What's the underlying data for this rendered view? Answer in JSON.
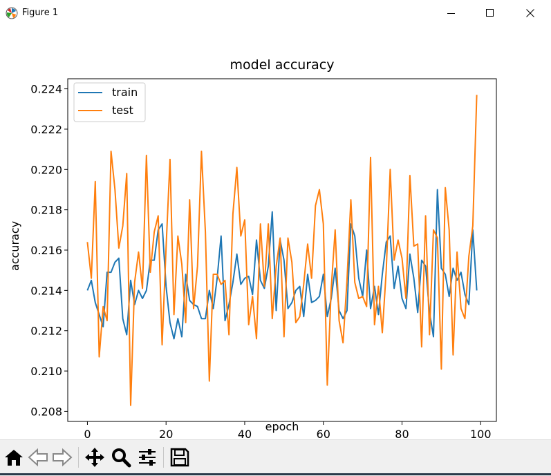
{
  "window": {
    "title": "Figure 1"
  },
  "chart_data": {
    "type": "line",
    "title": "model accuracy",
    "xlabel": "epoch",
    "ylabel": "accuracy",
    "xlim": [
      -5,
      104
    ],
    "ylim": [
      0.2075,
      0.2245
    ],
    "xticks": [
      0,
      20,
      40,
      60,
      80,
      100
    ],
    "xtick_labels": [
      "0",
      "20",
      "40",
      "60",
      "80",
      "100"
    ],
    "yticks": [
      0.208,
      0.21,
      0.212,
      0.214,
      0.216,
      0.218,
      0.22,
      0.222,
      0.224
    ],
    "ytick_labels": [
      "0.208",
      "0.210",
      "0.212",
      "0.214",
      "0.216",
      "0.218",
      "0.220",
      "0.222",
      "0.224"
    ],
    "grid": false,
    "legend": "upper-left",
    "series": [
      {
        "name": "train",
        "color": "#1f77b4",
        "x": [
          0,
          1,
          2,
          3,
          4,
          5,
          6,
          7,
          8,
          9,
          10,
          11,
          12,
          13,
          14,
          15,
          16,
          17,
          18,
          19,
          20,
          21,
          22,
          23,
          24,
          25,
          26,
          27,
          28,
          29,
          30,
          31,
          32,
          33,
          34,
          35,
          36,
          37,
          38,
          39,
          40,
          41,
          42,
          43,
          44,
          45,
          46,
          47,
          48,
          49,
          50,
          51,
          52,
          53,
          54,
          55,
          56,
          57,
          58,
          59,
          60,
          61,
          62,
          63,
          64,
          65,
          66,
          67,
          68,
          69,
          70,
          71,
          72,
          73,
          74,
          75,
          76,
          77,
          78,
          79,
          80,
          81,
          82,
          83,
          84,
          85,
          86,
          87,
          88,
          89,
          90,
          91,
          92,
          93,
          94,
          95,
          96,
          97,
          98,
          99
        ],
        "values": [
          0.214,
          0.2145,
          0.2134,
          0.2128,
          0.2122,
          0.2149,
          0.2149,
          0.2154,
          0.2156,
          0.2126,
          0.2118,
          0.2145,
          0.2133,
          0.214,
          0.2136,
          0.214,
          0.2155,
          0.2155,
          0.217,
          0.2173,
          0.2142,
          0.2124,
          0.2116,
          0.2126,
          0.2117,
          0.2148,
          0.2135,
          0.2133,
          0.2132,
          0.2126,
          0.2126,
          0.214,
          0.2131,
          0.2146,
          0.2167,
          0.2125,
          0.2133,
          0.2144,
          0.2158,
          0.2143,
          0.2146,
          0.2147,
          0.2138,
          0.2165,
          0.2145,
          0.2141,
          0.2152,
          0.2179,
          0.213,
          0.2165,
          0.2155,
          0.2131,
          0.2134,
          0.214,
          0.2142,
          0.2127,
          0.2148,
          0.2134,
          0.2135,
          0.2137,
          0.2148,
          0.2127,
          0.2136,
          0.2151,
          0.213,
          0.2126,
          0.213,
          0.2173,
          0.2167,
          0.2146,
          0.2137,
          0.216,
          0.2131,
          0.2142,
          0.2128,
          0.2148,
          0.2164,
          0.2167,
          0.2141,
          0.2152,
          0.2136,
          0.2131,
          0.2158,
          0.2146,
          0.2129,
          0.2155,
          0.2152,
          0.2129,
          0.2117,
          0.219,
          0.2151,
          0.2148,
          0.2137,
          0.2151,
          0.2145,
          0.2149,
          0.2138,
          0.2133,
          0.217,
          0.214
        ]
      },
      {
        "name": "test",
        "color": "#ff7f0e",
        "x": [
          0,
          1,
          2,
          3,
          4,
          5,
          6,
          7,
          8,
          9,
          10,
          11,
          12,
          13,
          14,
          15,
          16,
          17,
          18,
          19,
          20,
          21,
          22,
          23,
          24,
          25,
          26,
          27,
          28,
          29,
          30,
          31,
          32,
          33,
          34,
          35,
          36,
          37,
          38,
          39,
          40,
          41,
          42,
          43,
          44,
          45,
          46,
          47,
          48,
          49,
          50,
          51,
          52,
          53,
          54,
          55,
          56,
          57,
          58,
          59,
          60,
          61,
          62,
          63,
          64,
          65,
          66,
          67,
          68,
          69,
          70,
          71,
          72,
          73,
          74,
          75,
          76,
          77,
          78,
          79,
          80,
          81,
          82,
          83,
          84,
          85,
          86,
          87,
          88,
          89,
          90,
          91,
          92,
          93,
          94,
          95,
          96,
          97,
          98,
          99
        ],
        "values": [
          0.2164,
          0.2146,
          0.2194,
          0.2107,
          0.2132,
          0.2125,
          0.2209,
          0.219,
          0.2161,
          0.2172,
          0.2198,
          0.2083,
          0.2144,
          0.2159,
          0.2141,
          0.2207,
          0.2149,
          0.2169,
          0.2177,
          0.2113,
          0.2161,
          0.2205,
          0.2128,
          0.2167,
          0.2153,
          0.2124,
          0.2185,
          0.2131,
          0.2152,
          0.2209,
          0.2169,
          0.2095,
          0.2148,
          0.2148,
          0.2143,
          0.2145,
          0.2118,
          0.2178,
          0.2201,
          0.2167,
          0.2175,
          0.2123,
          0.2137,
          0.2116,
          0.2173,
          0.2142,
          0.2173,
          0.2126,
          0.2152,
          0.2166,
          0.2117,
          0.2166,
          0.2154,
          0.2124,
          0.2127,
          0.2143,
          0.2163,
          0.2146,
          0.2182,
          0.219,
          0.2173,
          0.2093,
          0.2141,
          0.217,
          0.2125,
          0.2114,
          0.2145,
          0.2185,
          0.2144,
          0.2136,
          0.2137,
          0.2132,
          0.2206,
          0.2123,
          0.2142,
          0.2119,
          0.215,
          0.22,
          0.2155,
          0.2165,
          0.2156,
          0.2136,
          0.2197,
          0.2162,
          0.2163,
          0.2112,
          0.2177,
          0.2118,
          0.217,
          0.2166,
          0.2101,
          0.2191,
          0.217,
          0.2108,
          0.2159,
          0.2131,
          0.2126,
          0.2157,
          0.2172,
          0.2237
        ]
      }
    ]
  },
  "toolbar": {
    "buttons": [
      {
        "name": "home-button",
        "icon": "home-icon"
      },
      {
        "name": "back-button",
        "icon": "back-arrow-icon"
      },
      {
        "name": "forward-button",
        "icon": "forward-arrow-icon"
      },
      {
        "name": "pan-button",
        "icon": "pan-icon"
      },
      {
        "name": "zoom-button",
        "icon": "zoom-icon"
      },
      {
        "name": "configure-subplots-button",
        "icon": "sliders-icon"
      },
      {
        "name": "save-button",
        "icon": "save-icon"
      }
    ]
  }
}
